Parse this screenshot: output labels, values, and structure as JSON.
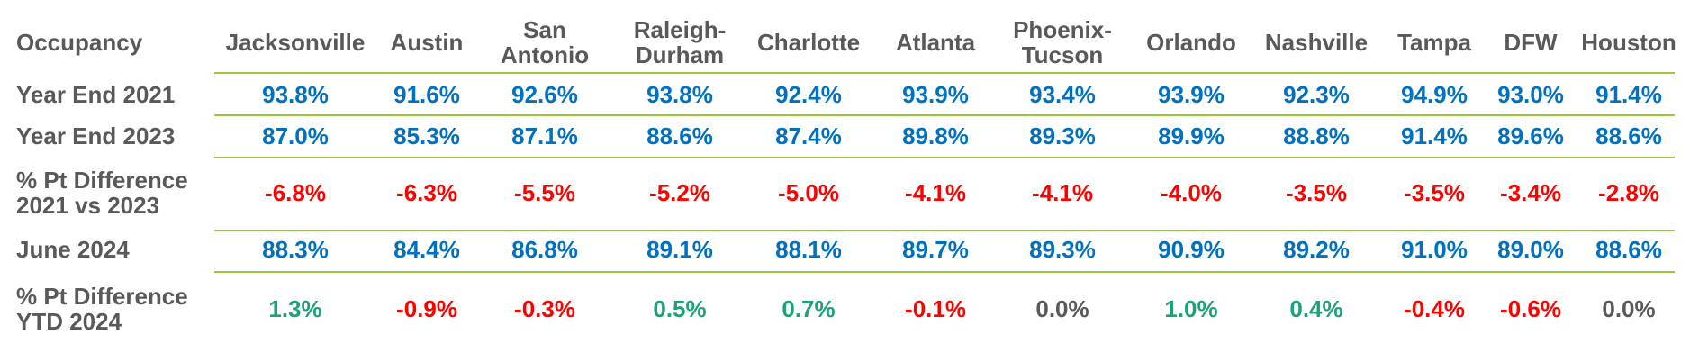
{
  "chart_data": {
    "type": "table",
    "corner_label": "Occupancy",
    "columns": [
      "Jacksonville",
      "Austin",
      "San Antonio",
      "Raleigh-Durham",
      "Charlotte",
      "Atlanta",
      "Phoenix-Tucson",
      "Orlando",
      "Nashville",
      "Tampa",
      "DFW",
      "Houston"
    ],
    "column_labels": [
      "Jacksonville",
      "Austin",
      "San\nAntonio",
      "Raleigh-\nDurham",
      "Charlotte",
      "Atlanta",
      "Phoenix-\nTucson",
      "Orlando",
      "Nashville",
      "Tampa",
      "DFW",
      "Houston"
    ],
    "rows": [
      {
        "label": "Year End 2021",
        "values": [
          "93.8%",
          "91.6%",
          "92.6%",
          "93.8%",
          "92.4%",
          "93.9%",
          "93.4%",
          "93.9%",
          "92.3%",
          "94.9%",
          "93.0%",
          "91.4%"
        ]
      },
      {
        "label": "Year End 2023",
        "values": [
          "87.0%",
          "85.3%",
          "87.1%",
          "88.6%",
          "87.4%",
          "89.8%",
          "89.3%",
          "89.9%",
          "88.8%",
          "91.4%",
          "89.6%",
          "88.6%"
        ]
      },
      {
        "label": "% Pt Difference\n2021 vs 2023",
        "values": [
          "-6.8%",
          "-6.3%",
          "-5.5%",
          "-5.2%",
          "-5.0%",
          "-4.1%",
          "-4.1%",
          "-4.0%",
          "-3.5%",
          "-3.5%",
          "-3.4%",
          "-2.8%"
        ]
      },
      {
        "label": "June 2024",
        "values": [
          "88.3%",
          "84.4%",
          "86.8%",
          "89.1%",
          "88.1%",
          "89.7%",
          "89.3%",
          "90.9%",
          "89.2%",
          "91.0%",
          "89.0%",
          "88.6%"
        ]
      },
      {
        "label": "% Pt Difference\nYTD 2024",
        "values": [
          "1.3%",
          "-0.9%",
          "-0.3%",
          "0.5%",
          "0.7%",
          "-0.1%",
          "0.0%",
          "1.0%",
          "0.4%",
          "-0.4%",
          "-0.6%",
          "0.0%"
        ]
      }
    ]
  },
  "colors": {
    "header_text": "#595959",
    "occupancy_value": "#0070c0",
    "negative": "#ff0000",
    "positive": "#1aa37a",
    "zero": "#595959",
    "separator": "#9cc93a"
  }
}
